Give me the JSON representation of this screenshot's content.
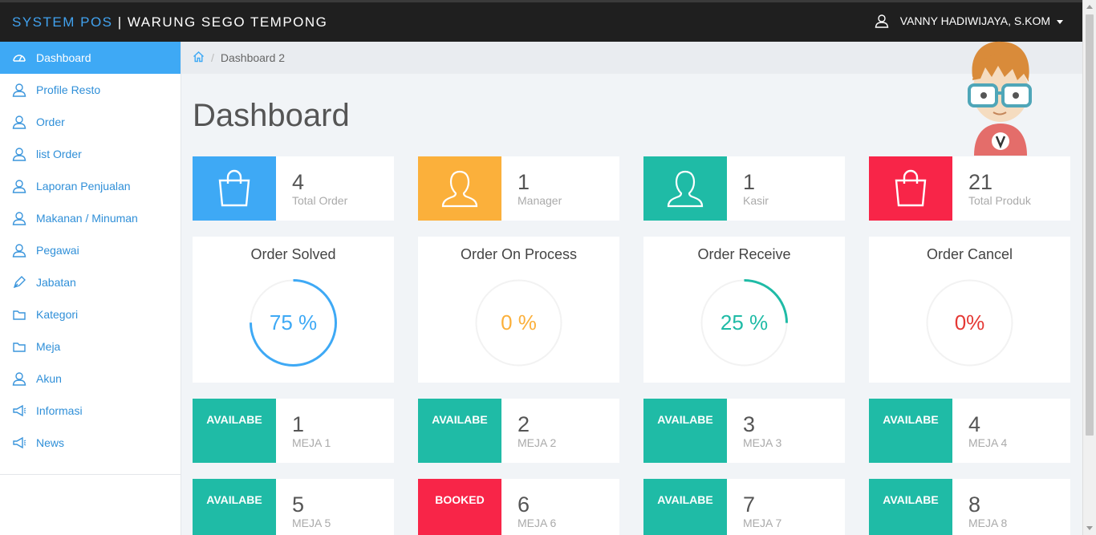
{
  "header": {
    "brand_accent": "SYSTEM POS",
    "brand_rest": " | WARUNG SEGO TEMPONG",
    "user_name": "VANNY HADIWIJAYA, S.KOM"
  },
  "sidebar": {
    "items": [
      {
        "label": "Dashboard",
        "icon": "dashboard-icon",
        "active": true
      },
      {
        "label": "Profile Resto",
        "icon": "user-icon"
      },
      {
        "label": "Order",
        "icon": "user-icon"
      },
      {
        "label": "list Order",
        "icon": "user-icon"
      },
      {
        "label": "Laporan Penjualan",
        "icon": "user-icon"
      },
      {
        "label": "Makanan / Minuman",
        "icon": "user-icon"
      },
      {
        "label": "Pegawai",
        "icon": "user-icon"
      },
      {
        "label": "Jabatan",
        "icon": "pen-icon"
      },
      {
        "label": "Kategori",
        "icon": "folder-icon"
      },
      {
        "label": "Meja",
        "icon": "folder-icon"
      },
      {
        "label": "Akun",
        "icon": "user-icon"
      },
      {
        "label": "Informasi",
        "icon": "megaphone-icon"
      },
      {
        "label": "News",
        "icon": "megaphone-icon"
      }
    ]
  },
  "breadcrumb": {
    "current": "Dashboard 2"
  },
  "page": {
    "title": "Dashboard"
  },
  "stats": [
    {
      "value": "4",
      "label": "Total Order",
      "color": "#3ea9f5",
      "icon": "shopping-bag-icon"
    },
    {
      "value": "1",
      "label": "Manager",
      "color": "#fbb03b",
      "icon": "user-icon"
    },
    {
      "value": "1",
      "label": "Kasir",
      "color": "#1fbba6",
      "icon": "user-icon"
    },
    {
      "value": "21",
      "label": "Total Produk",
      "color": "#f82548",
      "icon": "shopping-bag-icon"
    }
  ],
  "gauges": [
    {
      "title": "Order Solved",
      "text": "75 %",
      "percent": 75,
      "color": "#3ea9f5"
    },
    {
      "title": "Order On Process",
      "text": "0 %",
      "percent": 0,
      "color": "#fbb03b"
    },
    {
      "title": "Order Receive",
      "text": "25 %",
      "percent": 25,
      "color": "#1fbba6"
    },
    {
      "title": "Order Cancel",
      "text": "0%",
      "percent": 0,
      "color": "#e53935"
    }
  ],
  "tables": [
    {
      "status": "AVAILABE",
      "number": "1",
      "label": "MEJA 1",
      "color": "#1fbba6"
    },
    {
      "status": "AVAILABE",
      "number": "2",
      "label": "MEJA 2",
      "color": "#1fbba6"
    },
    {
      "status": "AVAILABE",
      "number": "3",
      "label": "MEJA 3",
      "color": "#1fbba6"
    },
    {
      "status": "AVAILABE",
      "number": "4",
      "label": "MEJA 4",
      "color": "#1fbba6"
    },
    {
      "status": "AVAILABE",
      "number": "5",
      "label": "MEJA 5",
      "color": "#1fbba6"
    },
    {
      "status": "BOOKED",
      "number": "6",
      "label": "MEJA 6",
      "color": "#f82548"
    },
    {
      "status": "AVAILABE",
      "number": "7",
      "label": "MEJA 7",
      "color": "#1fbba6"
    },
    {
      "status": "AVAILABE",
      "number": "8",
      "label": "MEJA 8",
      "color": "#1fbba6"
    }
  ]
}
